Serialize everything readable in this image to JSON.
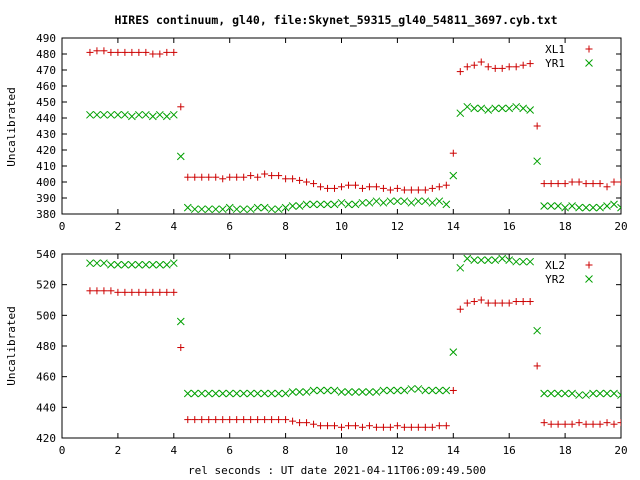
{
  "chart_data": {
    "type": "scatter",
    "title": "HIRES continuum, gl40, file:Skynet_59315_gl40_54811_3697.cyb.txt",
    "xlabel": "rel seconds : UT date 2021-04-11T06:09:49.500",
    "colors": {
      "series1": "#cc0000",
      "series2": "#00a000"
    },
    "panels": [
      {
        "ylabel": "Uncalibrated",
        "xlim": [
          0,
          20
        ],
        "ylim": [
          380,
          490
        ],
        "xticks": [
          0,
          2,
          4,
          6,
          8,
          10,
          12,
          14,
          16,
          18,
          20
        ],
        "yticks": [
          380,
          390,
          400,
          410,
          420,
          430,
          440,
          450,
          460,
          470,
          480,
          490
        ],
        "legend_position": "top-right",
        "series": [
          {
            "name": "XL1",
            "marker": "plus",
            "x": [
              1.0,
              1.25,
              1.5,
              1.75,
              2.0,
              2.25,
              2.5,
              2.75,
              3.0,
              3.25,
              3.5,
              3.75,
              4.0,
              4.25,
              4.5,
              4.75,
              5.0,
              5.25,
              5.5,
              5.75,
              6.0,
              6.25,
              6.5,
              6.75,
              7.0,
              7.25,
              7.5,
              7.75,
              8.0,
              8.25,
              8.5,
              8.75,
              9.0,
              9.25,
              9.5,
              9.75,
              10.0,
              10.25,
              10.5,
              10.75,
              11.0,
              11.25,
              11.5,
              11.75,
              12.0,
              12.25,
              12.5,
              12.75,
              13.0,
              13.25,
              13.5,
              13.75,
              14.0,
              14.25,
              14.5,
              14.75,
              15.0,
              15.25,
              15.5,
              15.75,
              16.0,
              16.25,
              16.5,
              16.75,
              17.0,
              17.25,
              17.5,
              17.75,
              18.0,
              18.25,
              18.5,
              18.75,
              19.0,
              19.25,
              19.5,
              19.75,
              20.0
            ],
            "y": [
              481,
              482,
              482,
              481,
              481,
              481,
              481,
              481,
              481,
              480,
              480,
              481,
              481,
              447,
              403,
              403,
              403,
              403,
              403,
              402,
              403,
              403,
              403,
              404,
              403,
              405,
              404,
              404,
              402,
              402,
              401,
              400,
              399,
              397,
              396,
              396,
              397,
              398,
              398,
              396,
              397,
              397,
              396,
              395,
              396,
              395,
              395,
              395,
              395,
              396,
              397,
              398,
              418,
              469,
              472,
              473,
              475,
              472,
              471,
              471,
              472,
              472,
              473,
              474,
              435,
              399,
              399,
              399,
              399,
              400,
              400,
              399,
              399,
              399,
              397,
              400,
              400
            ]
          },
          {
            "name": "YR1",
            "marker": "cross",
            "x": [
              1.0,
              1.25,
              1.5,
              1.75,
              2.0,
              2.25,
              2.5,
              2.75,
              3.0,
              3.25,
              3.5,
              3.75,
              4.0,
              4.25,
              4.5,
              4.75,
              5.0,
              5.25,
              5.5,
              5.75,
              6.0,
              6.25,
              6.5,
              6.75,
              7.0,
              7.25,
              7.5,
              7.75,
              8.0,
              8.25,
              8.5,
              8.75,
              9.0,
              9.25,
              9.5,
              9.75,
              10.0,
              10.25,
              10.5,
              10.75,
              11.0,
              11.25,
              11.5,
              11.75,
              12.0,
              12.25,
              12.5,
              12.75,
              13.0,
              13.25,
              13.5,
              13.75,
              14.0,
              14.25,
              14.5,
              14.75,
              15.0,
              15.25,
              15.5,
              15.75,
              16.0,
              16.25,
              16.5,
              16.75,
              17.0,
              17.25,
              17.5,
              17.75,
              18.0,
              18.25,
              18.5,
              18.75,
              19.0,
              19.25,
              19.5,
              19.75,
              20.0
            ],
            "y": [
              442,
              442,
              442,
              442,
              442,
              442,
              441,
              442,
              442,
              441,
              442,
              441,
              442,
              416,
              384,
              383,
              383,
              383,
              383,
              383,
              384,
              383,
              383,
              383,
              384,
              384,
              383,
              383,
              384,
              385,
              385,
              386,
              386,
              386,
              386,
              386,
              387,
              386,
              386,
              387,
              387,
              388,
              387,
              388,
              388,
              388,
              387,
              388,
              388,
              387,
              388,
              386,
              404,
              443,
              447,
              446,
              446,
              445,
              446,
              446,
              446,
              447,
              446,
              445,
              413,
              385,
              385,
              385,
              384,
              385,
              384,
              384,
              384,
              384,
              385,
              386,
              384
            ]
          }
        ]
      },
      {
        "ylabel": "Uncalibrated",
        "xlim": [
          0,
          20
        ],
        "ylim": [
          420,
          540
        ],
        "xticks": [
          0,
          2,
          4,
          6,
          8,
          10,
          12,
          14,
          16,
          18,
          20
        ],
        "yticks": [
          420,
          440,
          460,
          480,
          500,
          520,
          540
        ],
        "legend_position": "top-right",
        "series": [
          {
            "name": "XL2",
            "marker": "plus",
            "x": [
              1.0,
              1.25,
              1.5,
              1.75,
              2.0,
              2.25,
              2.5,
              2.75,
              3.0,
              3.25,
              3.5,
              3.75,
              4.0,
              4.25,
              4.5,
              4.75,
              5.0,
              5.25,
              5.5,
              5.75,
              6.0,
              6.25,
              6.5,
              6.75,
              7.0,
              7.25,
              7.5,
              7.75,
              8.0,
              8.25,
              8.5,
              8.75,
              9.0,
              9.25,
              9.5,
              9.75,
              10.0,
              10.25,
              10.5,
              10.75,
              11.0,
              11.25,
              11.5,
              11.75,
              12.0,
              12.25,
              12.5,
              12.75,
              13.0,
              13.25,
              13.5,
              13.75,
              14.0,
              14.25,
              14.5,
              14.75,
              15.0,
              15.25,
              15.5,
              15.75,
              16.0,
              16.25,
              16.5,
              16.75,
              17.0,
              17.25,
              17.5,
              17.75,
              18.0,
              18.25,
              18.5,
              18.75,
              19.0,
              19.25,
              19.5,
              19.75,
              20.0
            ],
            "y": [
              516,
              516,
              516,
              516,
              515,
              515,
              515,
              515,
              515,
              515,
              515,
              515,
              515,
              479,
              432,
              432,
              432,
              432,
              432,
              432,
              432,
              432,
              432,
              432,
              432,
              432,
              432,
              432,
              432,
              431,
              430,
              430,
              429,
              428,
              428,
              428,
              427,
              428,
              428,
              427,
              428,
              427,
              427,
              427,
              428,
              427,
              427,
              427,
              427,
              427,
              428,
              428,
              451,
              504,
              508,
              509,
              510,
              508,
              508,
              508,
              508,
              509,
              509,
              509,
              467,
              430,
              429,
              429,
              429,
              429,
              430,
              429,
              429,
              429,
              430,
              429,
              430
            ]
          },
          {
            "name": "YR2",
            "marker": "cross",
            "x": [
              1.0,
              1.25,
              1.5,
              1.75,
              2.0,
              2.25,
              2.5,
              2.75,
              3.0,
              3.25,
              3.5,
              3.75,
              4.0,
              4.25,
              4.5,
              4.75,
              5.0,
              5.25,
              5.5,
              5.75,
              6.0,
              6.25,
              6.5,
              6.75,
              7.0,
              7.25,
              7.5,
              7.75,
              8.0,
              8.25,
              8.5,
              8.75,
              9.0,
              9.25,
              9.5,
              9.75,
              10.0,
              10.25,
              10.5,
              10.75,
              11.0,
              11.25,
              11.5,
              11.75,
              12.0,
              12.25,
              12.5,
              12.75,
              13.0,
              13.25,
              13.5,
              13.75,
              14.0,
              14.25,
              14.5,
              14.75,
              15.0,
              15.25,
              15.5,
              15.75,
              16.0,
              16.25,
              16.5,
              16.75,
              17.0,
              17.25,
              17.5,
              17.75,
              18.0,
              18.25,
              18.5,
              18.75,
              19.0,
              19.25,
              19.5,
              19.75,
              20.0
            ],
            "y": [
              534,
              534,
              534,
              533,
              533,
              533,
              533,
              533,
              533,
              533,
              533,
              533,
              534,
              496,
              449,
              449,
              449,
              449,
              449,
              449,
              449,
              449,
              449,
              449,
              449,
              449,
              449,
              449,
              449,
              450,
              450,
              450,
              451,
              451,
              451,
              451,
              450,
              450,
              450,
              450,
              450,
              450,
              451,
              451,
              451,
              451,
              452,
              452,
              451,
              451,
              451,
              451,
              476,
              531,
              537,
              536,
              536,
              536,
              536,
              537,
              536,
              535,
              535,
              535,
              490,
              449,
              449,
              449,
              449,
              449,
              448,
              448,
              449,
              449,
              449,
              449,
              448
            ]
          }
        ]
      }
    ]
  }
}
